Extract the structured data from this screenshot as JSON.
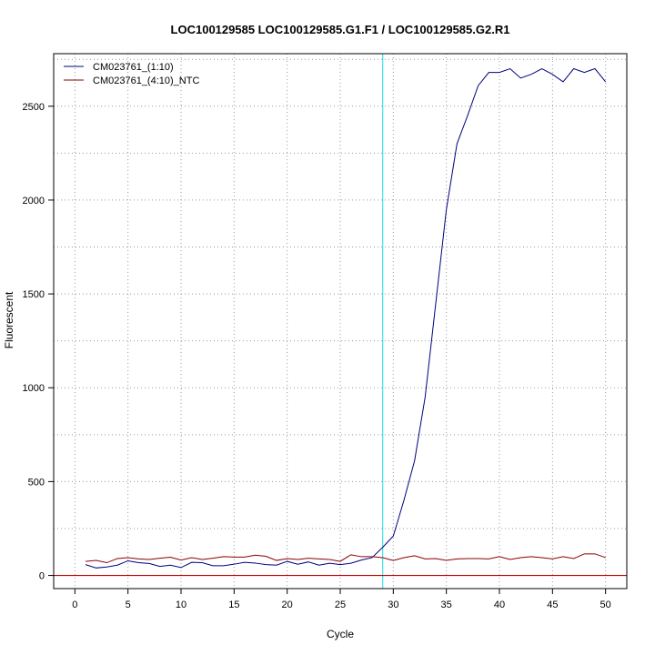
{
  "chart_data": {
    "type": "line",
    "title": "LOC100129585  LOC100129585.G1.F1 / LOC100129585.G2.R1",
    "xlabel": "Cycle",
    "ylabel": "Fluorescent",
    "xlim": [
      -2,
      52
    ],
    "ylim": [
      -70,
      2780
    ],
    "xticks": [
      0,
      5,
      10,
      15,
      20,
      25,
      30,
      35,
      40,
      45,
      50
    ],
    "yticks": [
      0,
      500,
      1000,
      1500,
      2000,
      2500
    ],
    "grid": true,
    "legend_position": "top-left",
    "x": [
      1,
      2,
      3,
      4,
      5,
      6,
      7,
      8,
      9,
      10,
      11,
      12,
      13,
      14,
      15,
      16,
      17,
      18,
      19,
      20,
      21,
      22,
      23,
      24,
      25,
      26,
      27,
      28,
      29,
      30,
      31,
      32,
      33,
      34,
      35,
      36,
      37,
      38,
      39,
      40,
      41,
      42,
      43,
      44,
      45,
      46,
      47,
      48,
      49,
      50
    ],
    "series": [
      {
        "name": "CM023761_(1:10)",
        "color": "#00007f",
        "values": [
          58,
          40,
          45,
          55,
          78,
          68,
          64,
          48,
          55,
          42,
          70,
          68,
          52,
          52,
          60,
          70,
          66,
          58,
          55,
          75,
          60,
          72,
          55,
          65,
          58,
          65,
          82,
          95,
          150,
          210,
          400,
          610,
          950,
          1450,
          1950,
          2300,
          2450,
          2610,
          2680,
          2680,
          2700,
          2650,
          2670,
          2700,
          2670,
          2630,
          2700,
          2680,
          2700,
          2630
        ]
      },
      {
        "name": "CM023761_(4:10)_NTC",
        "color": "#8b0000",
        "values": [
          75,
          80,
          68,
          90,
          95,
          88,
          85,
          92,
          97,
          82,
          95,
          85,
          92,
          100,
          98,
          98,
          108,
          102,
          80,
          90,
          85,
          92,
          88,
          85,
          75,
          110,
          100,
          100,
          95,
          80,
          95,
          105,
          88,
          90,
          80,
          88,
          90,
          90,
          88,
          100,
          85,
          95,
          100,
          95,
          88,
          100,
          90,
          115,
          115,
          95
        ]
      }
    ],
    "threshold": {
      "x": 29,
      "color": "#40e0e8"
    },
    "baseline": {
      "y": 0,
      "color": "#c00000"
    }
  }
}
